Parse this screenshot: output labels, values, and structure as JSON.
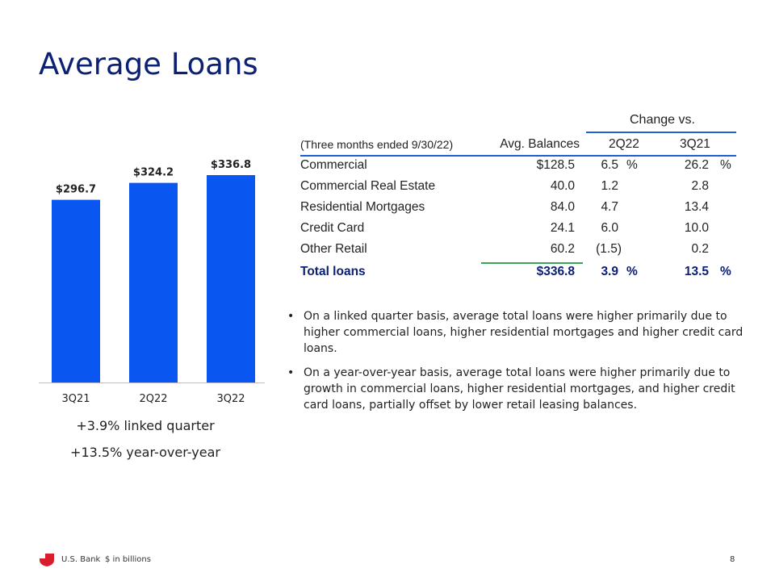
{
  "slide": {
    "title": "Average Loans",
    "summary_lines": [
      "+3.9% linked quarter",
      "+13.5% year-over-year"
    ]
  },
  "chart_data": {
    "type": "bar",
    "categories": [
      "3Q21",
      "2Q22",
      "3Q22"
    ],
    "values": [
      296.7,
      324.2,
      336.8
    ],
    "data_labels": [
      "$296.7",
      "$324.2",
      "$336.8"
    ],
    "bar_color": "#0a56f0",
    "title": "",
    "xlabel": "",
    "ylabel": "",
    "ylim": [
      0,
      336.8
    ],
    "grid": false
  },
  "table": {
    "change_header": "Change vs.",
    "period_label": "(Three months ended 9/30/22)",
    "col_balances": "Avg. Balances",
    "col_2q22": "2Q22",
    "col_3q21": "3Q21",
    "rows": [
      {
        "label": "Commercial",
        "balance": "$128.5",
        "chg_2q22": "6.5",
        "chg_3q21": "26.2",
        "pct1": "%",
        "pct2": "%"
      },
      {
        "label": "Commercial Real Estate",
        "balance": "40.0",
        "chg_2q22": "1.2",
        "chg_3q21": "2.8",
        "pct1": "",
        "pct2": ""
      },
      {
        "label": "Residential Mortgages",
        "balance": "84.0",
        "chg_2q22": "4.7",
        "chg_3q21": "13.4",
        "pct1": "",
        "pct2": ""
      },
      {
        "label": "Credit Card",
        "balance": "24.1",
        "chg_2q22": "6.0",
        "chg_3q21": "10.0",
        "pct1": "",
        "pct2": ""
      },
      {
        "label": "Other Retail",
        "balance": "60.2",
        "chg_2q22": "(1.5)",
        "chg_3q21": "0.2",
        "pct1": "",
        "pct2": ""
      }
    ],
    "total": {
      "label": "Total loans",
      "balance": "$336.8",
      "chg_2q22": "3.9",
      "chg_3q21": "13.5",
      "pct1": "%",
      "pct2": "%"
    }
  },
  "bullets": [
    "On a linked quarter basis, average total loans were higher primarily due to higher commercial loans, higher residential mortgages and higher credit card loans.",
    "On a year-over-year basis, average total loans were higher primarily due to growth in commercial loans, higher residential mortgages, and higher credit card loans, partially offset by lower retail leasing balances."
  ],
  "footer": {
    "brand": "U.S. Bank",
    "units_note": "$ in billions",
    "page_number": "8",
    "logo_icon": "shield-logo-icon",
    "logo_color": "#d81e2c"
  },
  "colors": {
    "title": "#0c2074",
    "accent_line_blue": "#1f5fd6",
    "accent_line_green": "#3aa655"
  }
}
